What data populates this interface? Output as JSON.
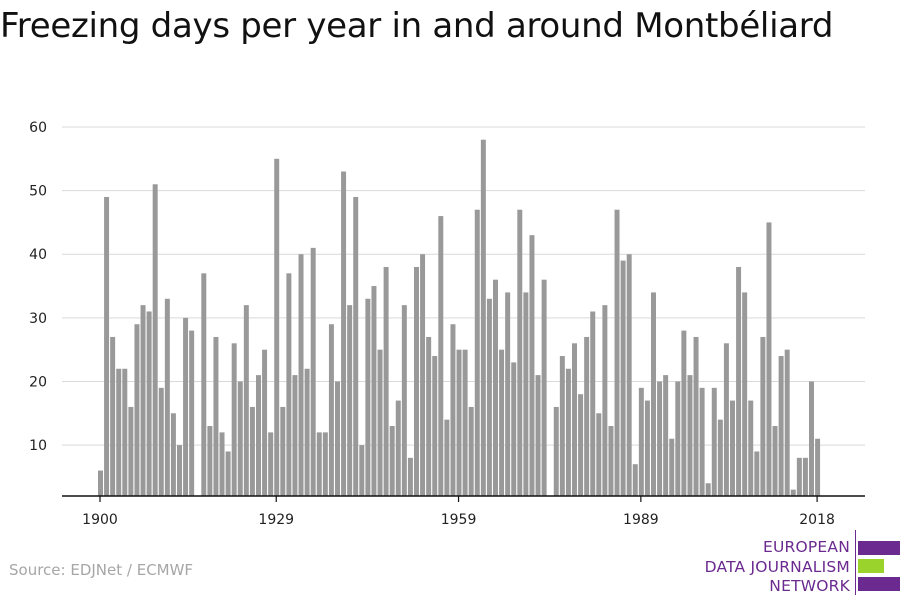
{
  "title": "Freezing days per year in and around Montbéliard",
  "source": "Source: EDJNet / ECMWF",
  "logo": {
    "lines": [
      "EUROPEAN",
      "DATA JOURNALISM",
      "NETWORK"
    ],
    "colors": [
      "#6b2a8f",
      "#9bd32d",
      "#6b2a8f"
    ]
  },
  "chart_data": {
    "type": "bar",
    "title": "Freezing days per year in and around Montbéliard",
    "xlabel": "",
    "ylabel": "",
    "x_start": 1900,
    "x_end": 2019,
    "x_ticks": [
      "1900",
      "1929",
      "1959",
      "1989",
      "2018"
    ],
    "y_ticks": [
      "10",
      "20",
      "30",
      "40",
      "50",
      "60"
    ],
    "ylim": [
      2,
      62
    ],
    "grid": true,
    "bar_color": "#999999",
    "values": [
      6,
      49,
      27,
      22,
      22,
      16,
      29,
      32,
      31,
      51,
      19,
      33,
      15,
      10,
      30,
      28,
      2,
      37,
      13,
      27,
      12,
      9,
      26,
      20,
      32,
      16,
      21,
      25,
      12,
      55,
      16,
      37,
      21,
      40,
      22,
      41,
      12,
      12,
      29,
      20,
      53,
      32,
      49,
      10,
      33,
      35,
      25,
      38,
      13,
      17,
      32,
      8,
      38,
      40,
      27,
      24,
      46,
      14,
      29,
      25,
      25,
      16,
      47,
      58,
      33,
      36,
      25,
      34,
      23,
      47,
      34,
      43,
      21,
      36,
      2,
      16,
      24,
      22,
      26,
      18,
      27,
      31,
      15,
      32,
      13,
      47,
      39,
      40,
      7,
      19,
      17,
      34,
      20,
      21,
      11,
      20,
      28,
      21,
      27,
      19,
      4,
      19,
      14,
      26,
      17,
      38,
      34,
      17,
      9,
      27,
      45,
      13,
      24,
      25,
      3,
      8,
      8,
      20,
      11
    ]
  }
}
